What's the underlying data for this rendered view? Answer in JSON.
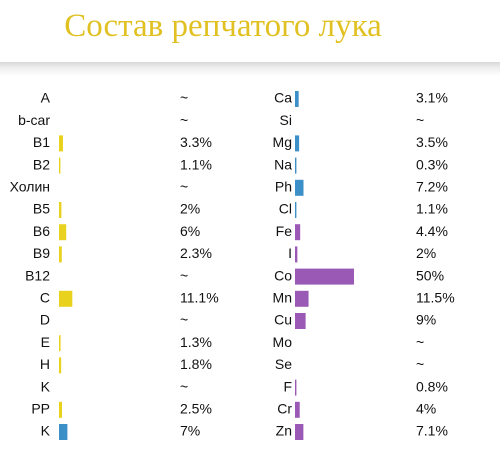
{
  "title": "Состав репчатого лука",
  "chart_data": {
    "type": "bar",
    "groups": [
      {
        "items": [
          {
            "label": "A",
            "value": null,
            "text": "~",
            "color": null
          },
          {
            "label": "b-car",
            "value": null,
            "text": "~",
            "color": null
          },
          {
            "label": "B1",
            "value": 3.3,
            "text": "3.3%",
            "color": "#e8d21d"
          },
          {
            "label": "B2",
            "value": 1.1,
            "text": "1.1%",
            "color": "#e8d21d"
          },
          {
            "label": "Холин",
            "value": null,
            "text": "~",
            "color": null
          },
          {
            "label": "B5",
            "value": 2,
            "text": "2%",
            "color": "#e8d21d"
          },
          {
            "label": "B6",
            "value": 6,
            "text": "6%",
            "color": "#e8d21d"
          },
          {
            "label": "B9",
            "value": 2.3,
            "text": "2.3%",
            "color": "#e8d21d"
          },
          {
            "label": "B12",
            "value": null,
            "text": "~",
            "color": null
          },
          {
            "label": "C",
            "value": 11.1,
            "text": "11.1%",
            "color": "#e8d21d"
          },
          {
            "label": "D",
            "value": null,
            "text": "~",
            "color": null
          },
          {
            "label": "E",
            "value": 1.3,
            "text": "1.3%",
            "color": "#e8d21d"
          },
          {
            "label": "H",
            "value": 1.8,
            "text": "1.8%",
            "color": "#e8d21d"
          },
          {
            "label": "K",
            "value": null,
            "text": "~",
            "color": null
          },
          {
            "label": "PP",
            "value": 2.5,
            "text": "2.5%",
            "color": "#e8d21d"
          },
          {
            "label": "K",
            "value": 7,
            "text": "7%",
            "color": "#3d8fc7"
          }
        ]
      },
      {
        "items": [
          {
            "label": "Ca",
            "value": 3.1,
            "text": "3.1%",
            "color": "#3d8fc7"
          },
          {
            "label": "Si",
            "value": null,
            "text": "~",
            "color": null
          },
          {
            "label": "Mg",
            "value": 3.5,
            "text": "3.5%",
            "color": "#3d8fc7"
          },
          {
            "label": "Na",
            "value": 0.3,
            "text": "0.3%",
            "color": "#3d8fc7"
          },
          {
            "label": "Ph",
            "value": 7.2,
            "text": "7.2%",
            "color": "#3d8fc7"
          },
          {
            "label": "Cl",
            "value": 1.1,
            "text": "1.1%",
            "color": "#3d8fc7"
          },
          {
            "label": "Fe",
            "value": 4.4,
            "text": "4.4%",
            "color": "#9b59b6"
          },
          {
            "label": "I",
            "value": 2,
            "text": "2%",
            "color": "#9b59b6"
          },
          {
            "label": "Co",
            "value": 50,
            "text": "50%",
            "color": "#9b59b6"
          },
          {
            "label": "Mn",
            "value": 11.5,
            "text": "11.5%",
            "color": "#9b59b6"
          },
          {
            "label": "Cu",
            "value": 9,
            "text": "9%",
            "color": "#9b59b6"
          },
          {
            "label": "Mo",
            "value": null,
            "text": "~",
            "color": null
          },
          {
            "label": "Se",
            "value": null,
            "text": "~",
            "color": null
          },
          {
            "label": "F",
            "value": 0.8,
            "text": "0.8%",
            "color": "#9b59b6"
          },
          {
            "label": "Cr",
            "value": 4,
            "text": "4%",
            "color": "#9b59b6"
          },
          {
            "label": "Zn",
            "value": 7.1,
            "text": "7.1%",
            "color": "#9b59b6"
          }
        ]
      }
    ],
    "value_max": 50,
    "grid": false,
    "title_color": "#e1c121"
  }
}
